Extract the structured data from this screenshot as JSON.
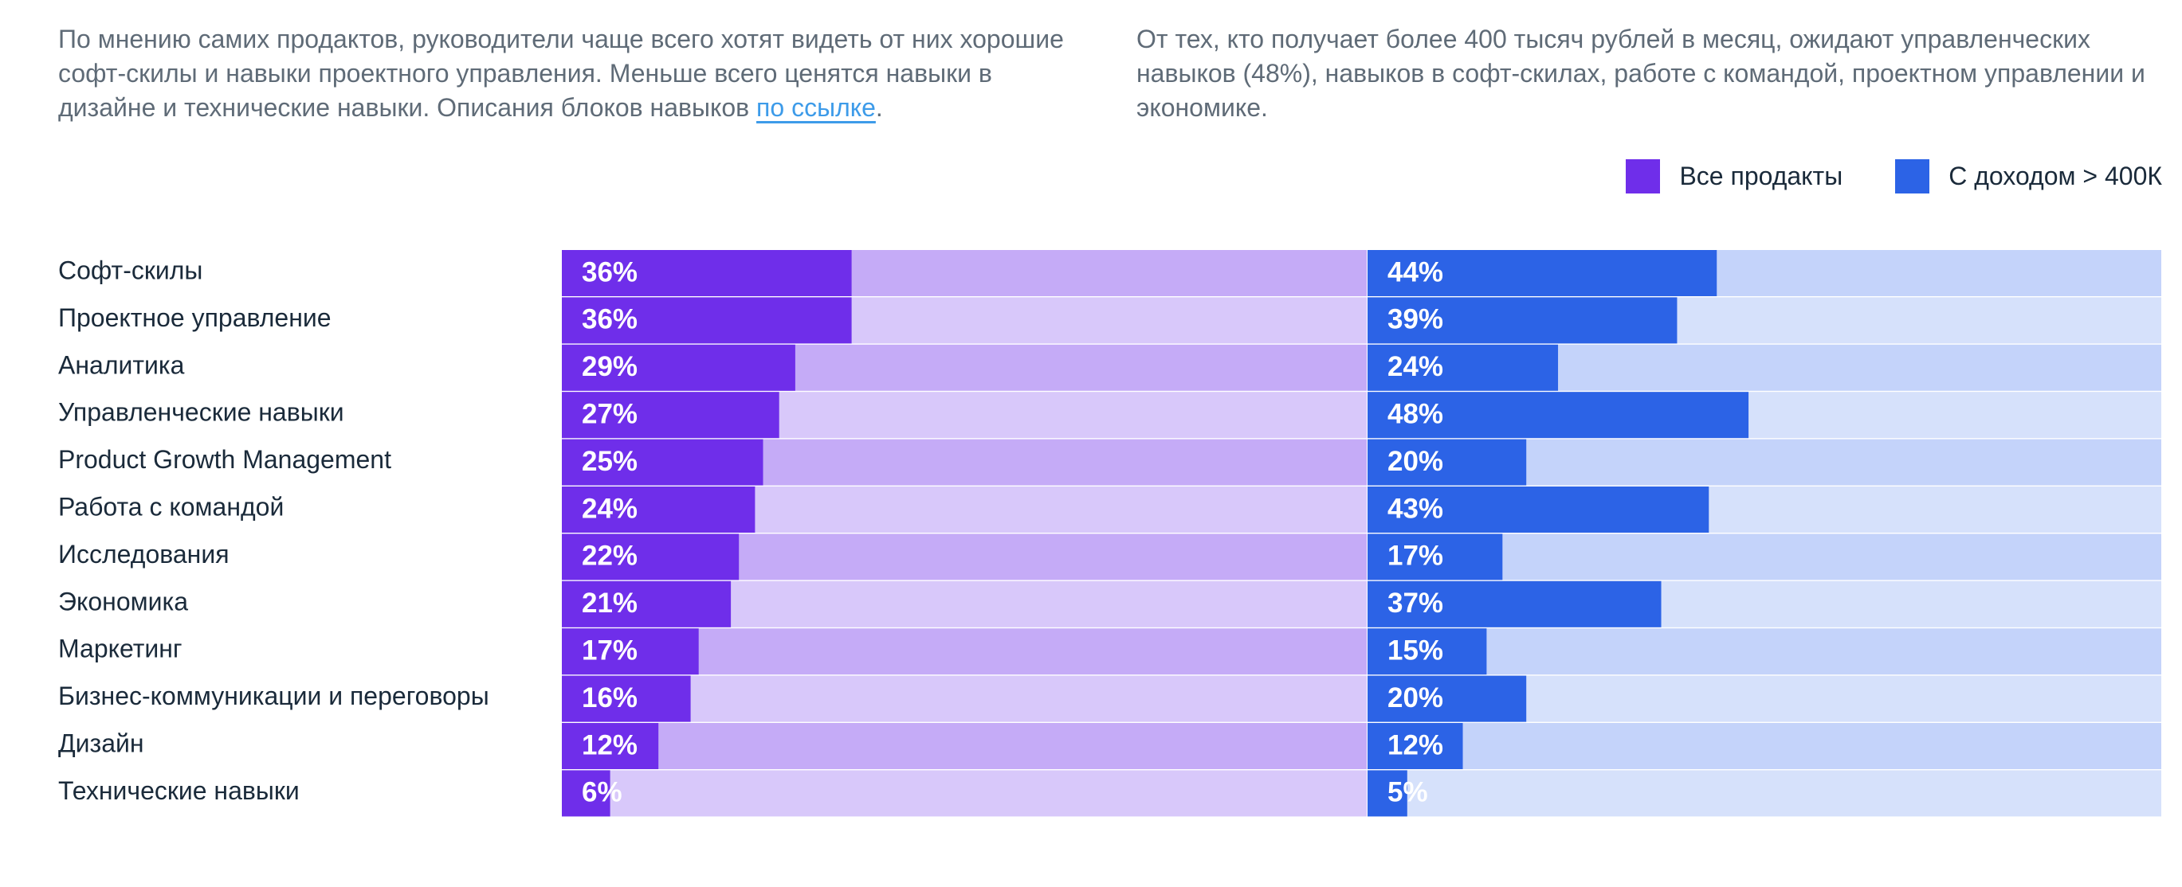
{
  "intro": {
    "left_text": "По мнению самих продактов, руководители чаще всего хотят видеть от них хорошие софт-скилы и навыки проектного управления. Меньше всего ценятся навыки в дизайне и технические навыки. Описания блоков навыков ",
    "left_link": "по ссылке",
    "left_end": ".",
    "right_text": "От тех, кто получает более 400 тысяч рублей в месяц, ожидают управленческих навыков (48%), навыков в софт-скилах, работе с командой, проектном управлении и экономике."
  },
  "colors": {
    "all_dark": "#6f2eea",
    "all_light_a": "#c5abf7",
    "all_light_b": "#d8c8fa",
    "high_dark": "#2c63e6",
    "high_light_a": "#c4d3fa",
    "high_light_b": "#d6e1fb"
  },
  "chart_data": {
    "type": "bar",
    "orientation": "horizontal",
    "xlim": [
      0,
      100
    ],
    "categories": [
      "Софт-скилы",
      "Проектное управление",
      "Аналитика",
      "Управленческие навыки",
      "Product Growth Management",
      "Работа с командой",
      "Исследования",
      "Экономика",
      "Маркетинг",
      "Бизнес-коммуникации и переговоры",
      "Дизайн",
      "Технические навыки"
    ],
    "series": [
      {
        "name": "Все продакты",
        "values": [
          36,
          36,
          29,
          27,
          25,
          24,
          22,
          21,
          17,
          16,
          12,
          6
        ],
        "labels": [
          "36%",
          "36%",
          "29%",
          "27%",
          "25%",
          "24%",
          "22%",
          "21%",
          "17%",
          "16%",
          "12%",
          "6%"
        ]
      },
      {
        "name": "С доходом > 400К",
        "values": [
          44,
          39,
          24,
          48,
          20,
          43,
          17,
          37,
          15,
          20,
          12,
          5
        ],
        "labels": [
          "44%",
          "39%",
          "24%",
          "48%",
          "20%",
          "43%",
          "17%",
          "37%",
          "15%",
          "20%",
          "12%",
          "5%"
        ]
      }
    ],
    "legend": [
      "Все продакты",
      "С доходом > 400К"
    ],
    "legend_position": "top-right"
  }
}
